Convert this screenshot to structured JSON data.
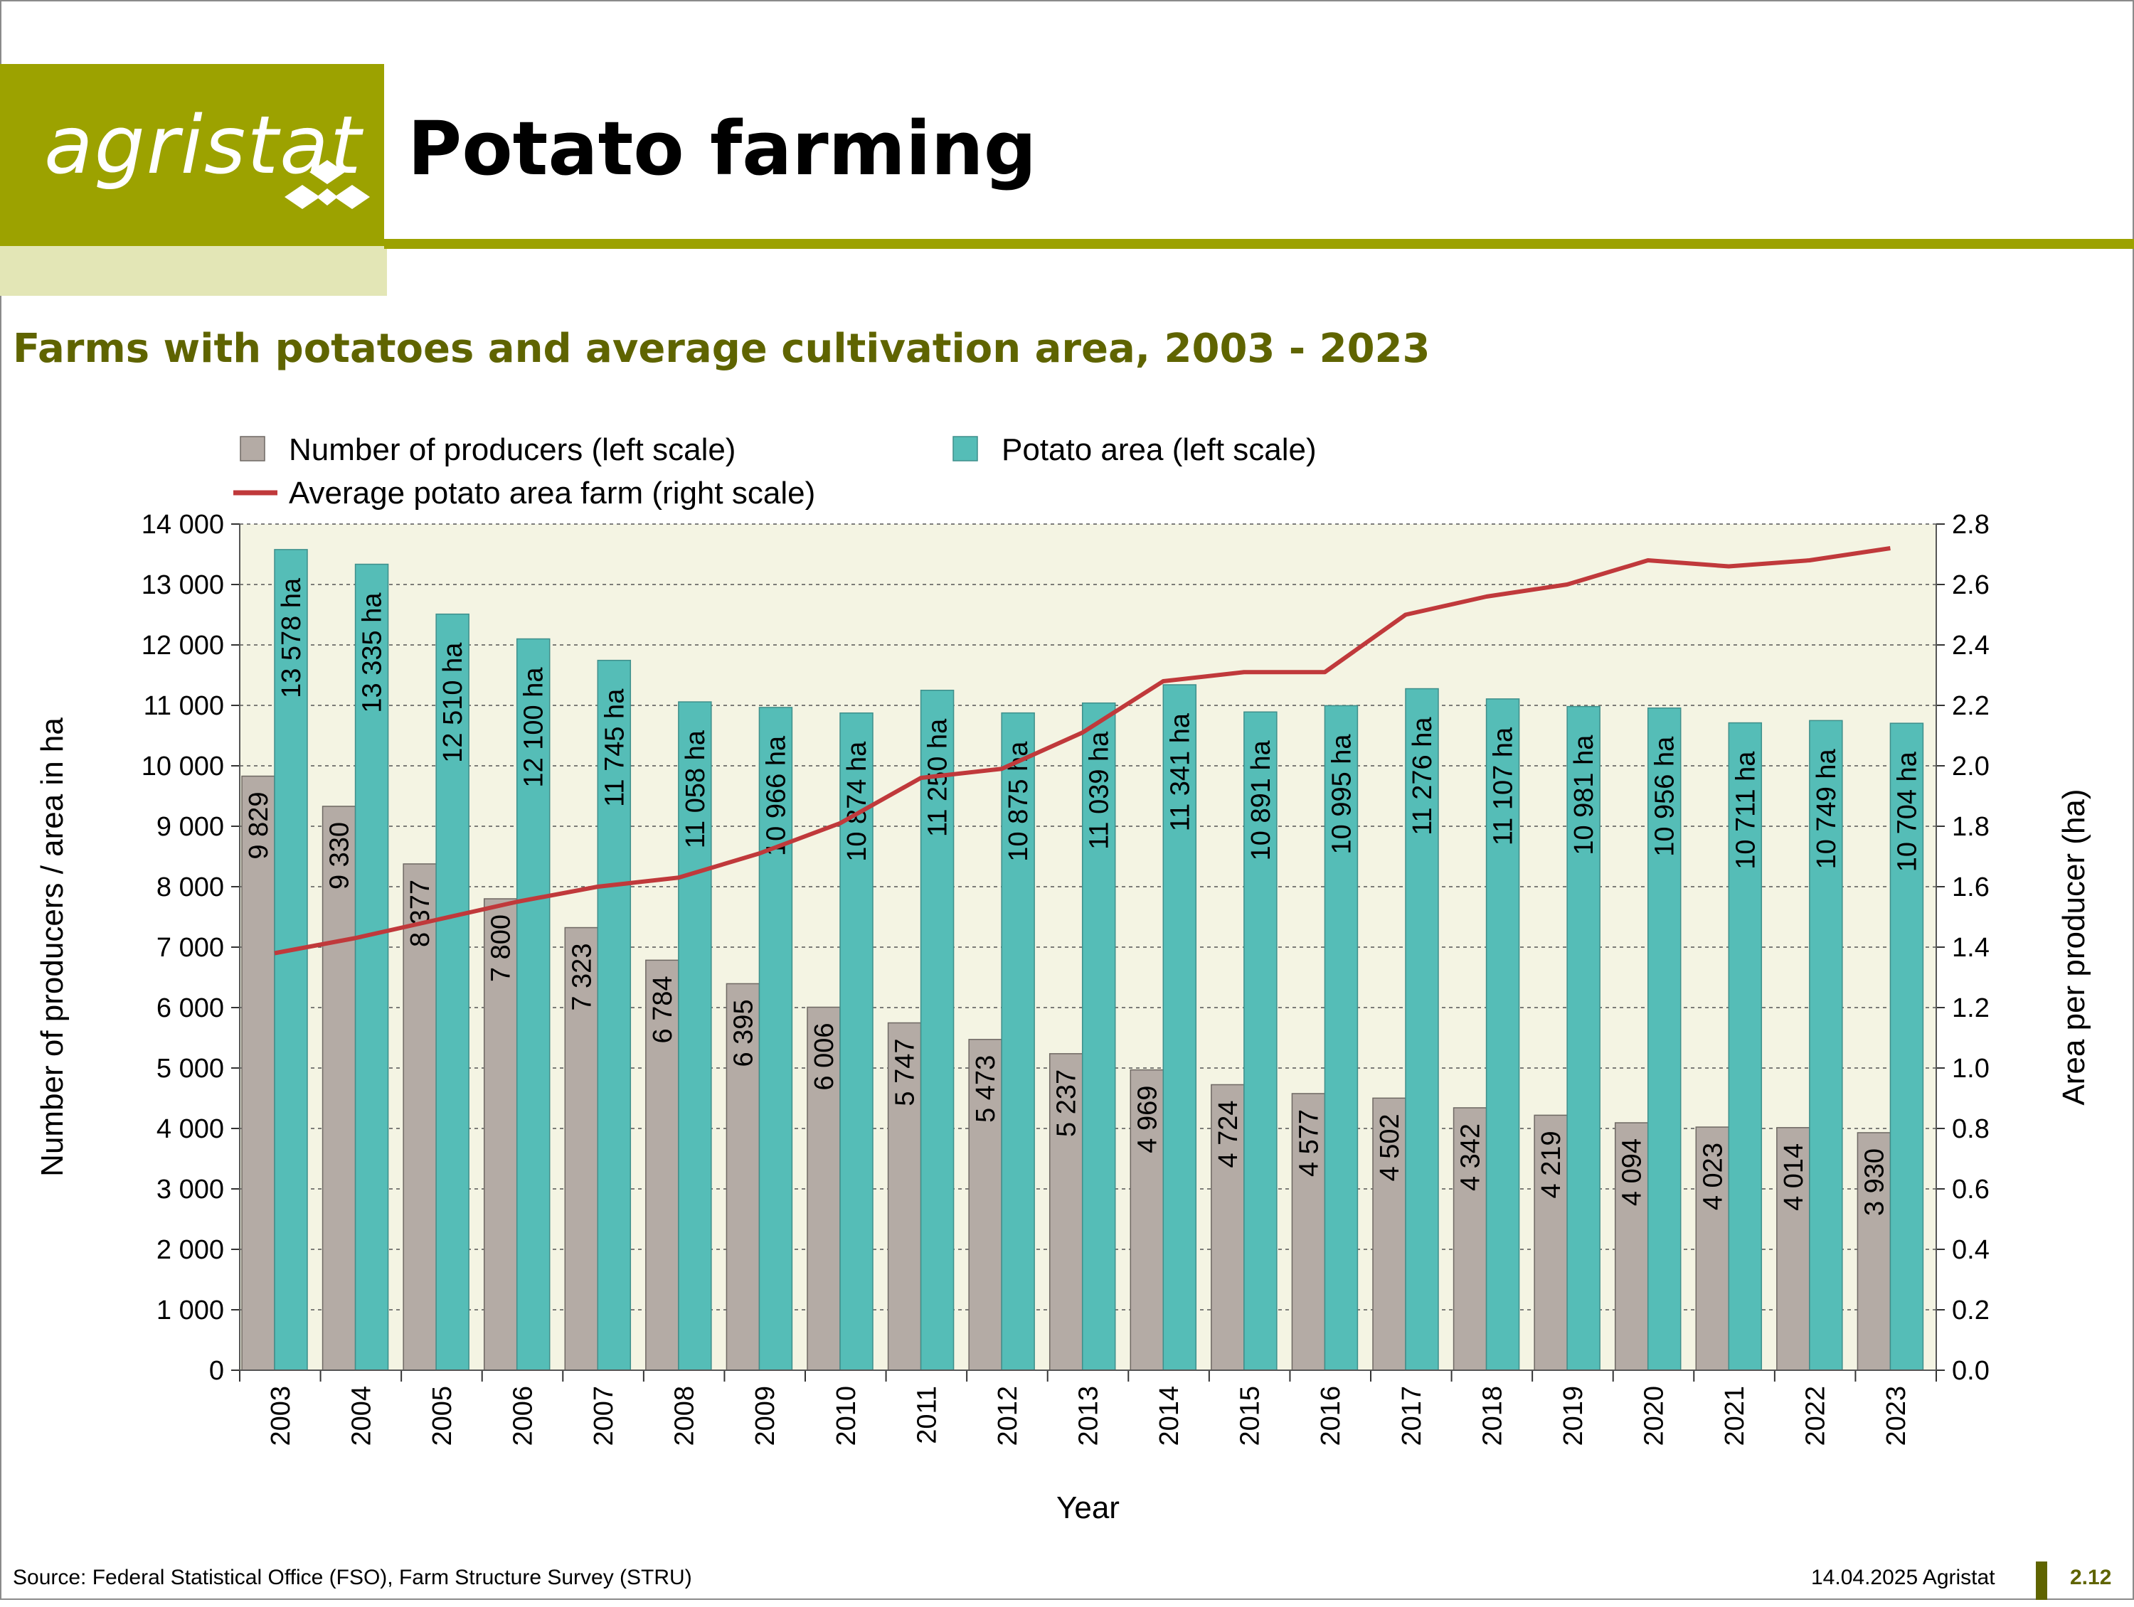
{
  "header": {
    "logo_text": "agristat",
    "title": "Potato farming",
    "brand_color": "#9ca200"
  },
  "footer": {
    "source": "Source: Federal Statistical Office (FSO), Farm Structure Survey (STRU)",
    "date": "14.04.2025 Agristat",
    "page_number": "2.12"
  },
  "chart_data": {
    "type": "bar",
    "title": "Farms with potatoes and average cultivation area, 2003 - 2023",
    "xlabel": "Year",
    "ylabel": "Number of producers / area in ha",
    "ylabel_right": "Area per producer (ha)",
    "ylim": [
      0,
      14000
    ],
    "ylim_right": [
      0,
      2.8
    ],
    "y_ticks": [
      "0",
      "1 000",
      "2 000",
      "3 000",
      "4 000",
      "5 000",
      "6 000",
      "7 000",
      "8 000",
      "9 000",
      "10 000",
      "11 000",
      "12 000",
      "13 000",
      "14 000"
    ],
    "y_right_ticks": [
      "0.0",
      "0.2",
      "0.4",
      "0.6",
      "0.8",
      "1.0",
      "1.2",
      "1.4",
      "1.6",
      "1.8",
      "2.0",
      "2.2",
      "2.4",
      "2.6",
      "2.8"
    ],
    "grid": true,
    "legend_position": "top",
    "categories": [
      "2003",
      "2004",
      "2005",
      "2006",
      "2007",
      "2008",
      "2009",
      "2010",
      "2011",
      "2012",
      "2013",
      "2014",
      "2015",
      "2016",
      "2017",
      "2018",
      "2019",
      "2020",
      "2021",
      "2022",
      "2023"
    ],
    "series": [
      {
        "name": "Number of producers (left scale)",
        "type": "bar",
        "axis": "left",
        "color": "#b4aba5",
        "values": [
          9829,
          9330,
          8377,
          7800,
          7323,
          6784,
          6395,
          6006,
          5747,
          5473,
          5237,
          4969,
          4724,
          4577,
          4502,
          4342,
          4219,
          4094,
          4023,
          4014,
          3930
        ],
        "labels": [
          "9 829",
          "9 330",
          "8 377",
          "7 800",
          "7 323",
          "6 784",
          "6 395",
          "6 006",
          "5 747",
          "5 473",
          "5 237",
          "4 969",
          "4 724",
          "4 577",
          "4 502",
          "4 342",
          "4 219",
          "4 094",
          "4 023",
          "4 014",
          "3 930"
        ]
      },
      {
        "name": "Potato area (left scale)",
        "type": "bar",
        "axis": "left",
        "color": "#55bdb7",
        "values": [
          13578,
          13335,
          12510,
          12100,
          11745,
          11058,
          10966,
          10874,
          11250,
          10875,
          11039,
          11341,
          10891,
          10995,
          11276,
          11107,
          10981,
          10956,
          10711,
          10749,
          10704
        ],
        "labels": [
          "13 578 ha",
          "13 335 ha",
          "12 510 ha",
          "12 100 ha",
          "11 745 ha",
          "11 058 ha",
          "10 966 ha",
          "10 874 ha",
          "11 250 ha",
          "10 875 ha",
          "11 039 ha",
          "11 341 ha",
          "10 891 ha",
          "10 995 ha",
          "11 276 ha",
          "11 107 ha",
          "10 981 ha",
          "10 956 ha",
          "10 711 ha",
          "10 749 ha",
          "10 704 ha"
        ]
      },
      {
        "name": "Average potato area farm (right scale)",
        "type": "line",
        "axis": "right",
        "color": "#c0393b",
        "values": [
          1.38,
          1.43,
          1.49,
          1.55,
          1.6,
          1.63,
          1.71,
          1.81,
          1.96,
          1.99,
          2.11,
          2.28,
          2.31,
          2.31,
          2.5,
          2.56,
          2.6,
          2.68,
          2.66,
          2.68,
          2.72
        ]
      }
    ]
  }
}
